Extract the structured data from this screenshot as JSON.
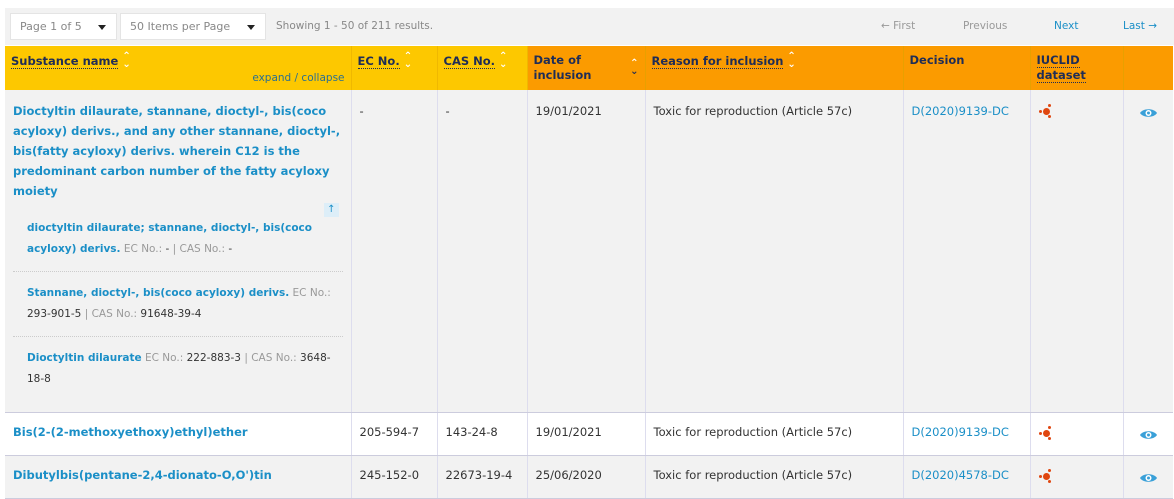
{
  "toolbar": {
    "page_select": "Page 1 of 5",
    "items_select": "50 Items per Page",
    "showing": "Showing 1 - 50 of 211 results.",
    "first": "← First",
    "previous": "Previous",
    "next": "Next",
    "last": "Last →"
  },
  "colors": {
    "header_yellow": "#fdc800",
    "header_orange": "#fb9b00",
    "link": "#1b8fc7",
    "iuclid_icon": "#e0460f"
  },
  "columns": {
    "substance": "Substance name",
    "expand": "expand / collapse",
    "ec": "EC No.",
    "cas": "CAS No.",
    "date": "Date of inclusion",
    "reason": "Reason for inclusion",
    "decision": "Decision",
    "iuclid": "IUCLID dataset"
  },
  "labels": {
    "ec": "EC No.:",
    "cas": "CAS No.:",
    "sep": "|"
  },
  "rows": [
    {
      "name": "Dioctyltin dilaurate, stannane, dioctyl-, bis(coco acyloxy) derivs., and any other stannane, dioctyl-, bis(fatty acyloxy) derivs. wherein C12 is the predominant carbon number of the fatty acyloxy moiety",
      "ec": "-",
      "cas": "-",
      "date": "19/01/2021",
      "reason": "Toxic for reproduction (Article 57c)",
      "decision": "D(2020)9139-DC",
      "subs": [
        {
          "name": "dioctyltin dilaurate; stannane, dioctyl-, bis(coco acyloxy) derivs.",
          "ec": "-",
          "cas": "-"
        },
        {
          "name": "Stannane, dioctyl-, bis(coco acyloxy) derivs.",
          "ec": "293-901-5",
          "cas": "91648-39-4"
        },
        {
          "name": "Dioctyltin dilaurate",
          "ec": "222-883-3",
          "cas": "3648-18-8"
        }
      ]
    },
    {
      "name": "Bis(2-(2-methoxyethoxy)ethyl)ether",
      "ec": "205-594-7",
      "cas": "143-24-8",
      "date": "19/01/2021",
      "reason": "Toxic for reproduction (Article 57c)",
      "decision": "D(2020)9139-DC"
    },
    {
      "name": "Dibutylbis(pentane-2,4-dionato-O,O')tin",
      "ec": "245-152-0",
      "cas": "22673-19-4",
      "date": "25/06/2020",
      "reason": "Toxic for reproduction (Article 57c)",
      "decision": "D(2020)4578-DC"
    }
  ],
  "icons": {
    "iuclid": "iuclid-molecule-icon",
    "view": "eye-icon",
    "sort": "sort-arrows-icon",
    "collapse": "arrow-up-icon"
  }
}
